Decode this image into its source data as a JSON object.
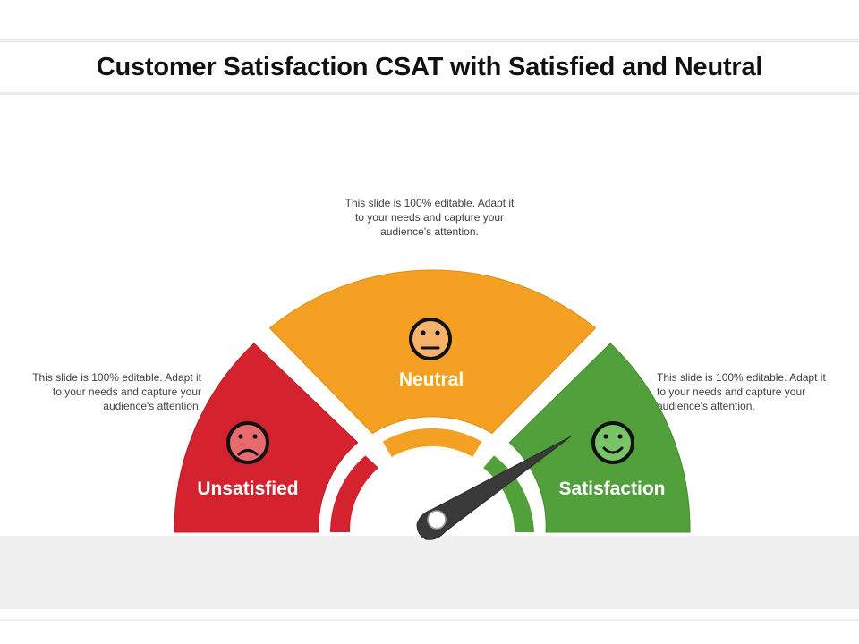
{
  "title": "Customer Satisfaction CSAT with Satisfied and Neutral",
  "descriptions": {
    "top": "This slide is 100% editable. Adapt it to your needs and capture your audience's attention.",
    "left": "This slide is 100% editable. Adapt it to your needs and capture your audience's attention.",
    "right": "This slide is 100% editable. Adapt it to your needs and capture your audience's attention."
  },
  "segments": {
    "unsatisfied": {
      "label": "Unsatisfied",
      "color": "#d4232f",
      "face_color": "#e76a6f",
      "icon": "sad-face-icon"
    },
    "neutral": {
      "label": "Neutral",
      "color": "#f3a023",
      "face_color": "#f6b26a",
      "icon": "neutral-face-icon"
    },
    "satisfaction": {
      "label": "Satisfaction",
      "color": "#52a03c",
      "face_color": "#79c466",
      "icon": "happy-face-icon"
    }
  },
  "needle_color": "#3a3a3a",
  "icons": [
    "sad-face-icon",
    "neutral-face-icon",
    "happy-face-icon",
    "gauge-needle-icon"
  ]
}
